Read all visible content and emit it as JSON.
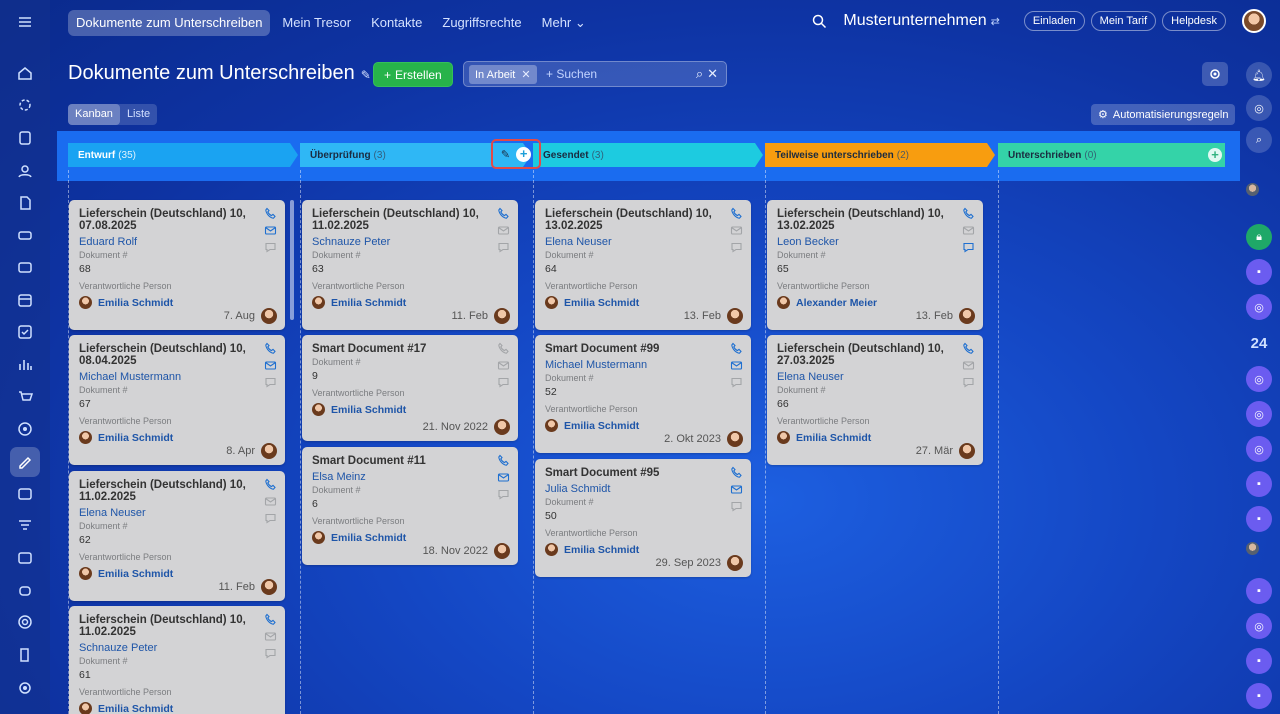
{
  "topbar": {
    "nav": [
      "Dokumente zum Unterschreiben",
      "Mein Tresor",
      "Kontakte",
      "Zugriffsrechte",
      "Mehr ⌄"
    ],
    "company": "Musterunternehmen",
    "invite": "Einladen",
    "tariff": "Mein Tarif",
    "helpdesk": "Helpdesk"
  },
  "page": {
    "title": "Dokumente zum Unterschreiben",
    "create": "Erstellen",
    "filter_chip": "In Arbeit",
    "search_placeholder": "+ Suchen",
    "view_kanban": "Kanban",
    "view_list": "Liste",
    "automation": "Automatisierungsregeln"
  },
  "rightrail": {
    "counter": "24"
  },
  "columns": [
    {
      "name": "Entwurf",
      "count": "(35)",
      "color": "#1aa3f2"
    },
    {
      "name": "Überprüfung",
      "count": "(3)",
      "color": "#2fb7f5"
    },
    {
      "name": "Gesendet",
      "count": "(3)",
      "color": "#1dcbe0"
    },
    {
      "name": "Teilweise unterschrieben",
      "count": "(2)",
      "color": "#f89d0f"
    },
    {
      "name": "Unterschrieben",
      "count": "(0)",
      "color": "#34d3a8"
    }
  ],
  "labels": {
    "doc_no": "Dokument #",
    "responsible": "Verantwortliche Person"
  },
  "cards": {
    "c0": [
      {
        "title": "Lieferschein (Deutschland) 10, 07.08.2025",
        "client": "Eduard Rolf",
        "number": "68",
        "person": "Emilia Schmidt",
        "date": "7. Aug"
      },
      {
        "title": "Lieferschein (Deutschland) 10, 08.04.2025",
        "client": "Michael Mustermann",
        "number": "67",
        "person": "Emilia Schmidt",
        "date": "8. Apr"
      },
      {
        "title": "Lieferschein (Deutschland) 10, 11.02.2025",
        "client": "Elena Neuser",
        "number": "62",
        "person": "Emilia Schmidt",
        "date": "11. Feb"
      },
      {
        "title": "Lieferschein (Deutschland) 10, 11.02.2025",
        "client": "Schnauze Peter",
        "number": "61",
        "person": "Emilia Schmidt",
        "date": ""
      }
    ],
    "c1": [
      {
        "title": "Lieferschein (Deutschland) 10, 11.02.2025",
        "client": "Schnauze Peter",
        "number": "63",
        "person": "Emilia Schmidt",
        "date": "11. Feb"
      },
      {
        "title": "Smart Document #17",
        "client": "",
        "number": "9",
        "person": "Emilia Schmidt",
        "date": "21. Nov 2022"
      },
      {
        "title": "Smart Document #11",
        "client": "Elsa Meinz",
        "number": "6",
        "person": "Emilia Schmidt",
        "date": "18. Nov 2022"
      }
    ],
    "c2": [
      {
        "title": "Lieferschein (Deutschland) 10, 13.02.2025",
        "client": "Elena Neuser",
        "number": "64",
        "person": "Emilia Schmidt",
        "date": "13. Feb"
      },
      {
        "title": "Smart Document #99",
        "client": "Michael Mustermann",
        "number": "52",
        "person": "Emilia Schmidt",
        "date": "2. Okt 2023"
      },
      {
        "title": "Smart Document #95",
        "client": "Julia Schmidt",
        "number": "50",
        "person": "Emilia Schmidt",
        "date": "29. Sep 2023"
      }
    ],
    "c3": [
      {
        "title": "Lieferschein (Deutschland) 10, 13.02.2025",
        "client": "Leon Becker",
        "number": "65",
        "person": "Alexander Meier",
        "date": "13. Feb"
      },
      {
        "title": "Lieferschein (Deutschland) 10, 27.03.2025",
        "client": "Elena Neuser",
        "number": "66",
        "person": "Emilia Schmidt",
        "date": "27. Mär"
      }
    ]
  }
}
